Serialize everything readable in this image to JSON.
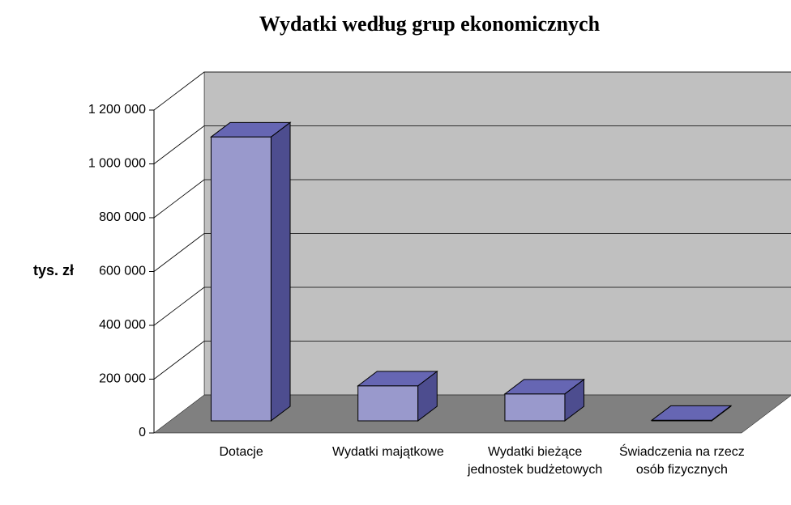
{
  "chart_data": {
    "type": "bar3d",
    "title": "Wydatki według grup ekonomicznych",
    "ylabel": "tys. zł",
    "categories": [
      "Dotacje",
      "Wydatki majątkowe",
      "Wydatki bieżące jednostek budżetowych",
      "Świadczenia na rzecz osób fizycznych"
    ],
    "values": [
      1055000,
      130000,
      100000,
      2000
    ],
    "color": "#9999cc",
    "ylim": [
      0,
      1200000
    ],
    "yticks": [
      0,
      {
        "value": 200000,
        "label": "200 000"
      },
      {
        "value": 400000,
        "label": "400 000"
      },
      {
        "value": 600000,
        "label": "600 000"
      },
      {
        "value": 800000,
        "label": "800 000"
      },
      {
        "value": 1000000,
        "label": "1 000 000"
      },
      {
        "value": 1200000,
        "label": "1 200 000"
      }
    ],
    "grid": true
  }
}
